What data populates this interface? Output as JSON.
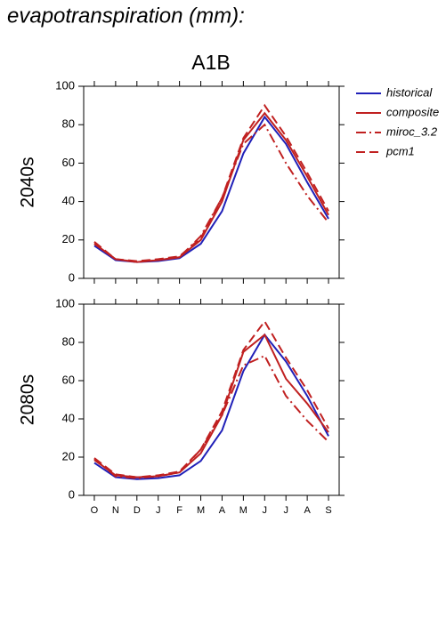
{
  "chart_data": [
    {
      "type": "line",
      "title": "evapotranspiration (mm):",
      "subtitle": "A1B",
      "ylabel": "2040s",
      "ylim": [
        0,
        100
      ],
      "yticks": [
        0,
        20,
        40,
        60,
        80,
        100
      ],
      "legend": "outside right",
      "series": [
        {
          "name": "historical",
          "color": "#2020b8",
          "dash": "solid",
          "values": [
            17,
            9.5,
            8.5,
            9,
            10.5,
            18,
            35,
            65,
            84,
            70,
            50,
            31
          ]
        },
        {
          "name": "composite",
          "color": "#c02020",
          "dash": "solid",
          "values": [
            18,
            10,
            8.5,
            9.5,
            11,
            20,
            40,
            72,
            86,
            72,
            53,
            33
          ]
        },
        {
          "name": "miroc_3.2",
          "color": "#c02020",
          "dash": "dashdot",
          "values": [
            18,
            10,
            8.5,
            9.5,
            11,
            22,
            42,
            70,
            80,
            60,
            43,
            29
          ]
        },
        {
          "name": "pcm1",
          "color": "#c02020",
          "dash": "dash",
          "values": [
            19,
            10,
            9,
            10,
            11.5,
            21,
            42,
            73,
            90,
            74,
            55,
            35
          ]
        }
      ]
    },
    {
      "type": "line",
      "ylabel": "2080s",
      "categories": [
        "O",
        "N",
        "D",
        "J",
        "F",
        "M",
        "A",
        "M",
        "J",
        "J",
        "A",
        "S"
      ],
      "ylim": [
        0,
        100
      ],
      "yticks": [
        0,
        20,
        40,
        60,
        80,
        100
      ],
      "series": [
        {
          "name": "historical",
          "color": "#2020b8",
          "dash": "solid",
          "values": [
            17,
            9.5,
            8.5,
            9,
            10.5,
            18,
            34,
            65,
            84,
            70,
            52,
            31
          ]
        },
        {
          "name": "composite",
          "color": "#c02020",
          "dash": "solid",
          "values": [
            18.5,
            10.5,
            9.5,
            10,
            12,
            22,
            42,
            75,
            84,
            61,
            48,
            33
          ]
        },
        {
          "name": "miroc_3.2",
          "color": "#c02020",
          "dash": "dashdot",
          "values": [
            19,
            10,
            9,
            10,
            12,
            24,
            42,
            68,
            73,
            52,
            39,
            28
          ]
        },
        {
          "name": "pcm1",
          "color": "#c02020",
          "dash": "dash",
          "values": [
            19.5,
            11,
            9.5,
            10.5,
            12.5,
            24,
            44,
            76,
            91,
            72,
            55,
            35
          ]
        }
      ]
    }
  ]
}
